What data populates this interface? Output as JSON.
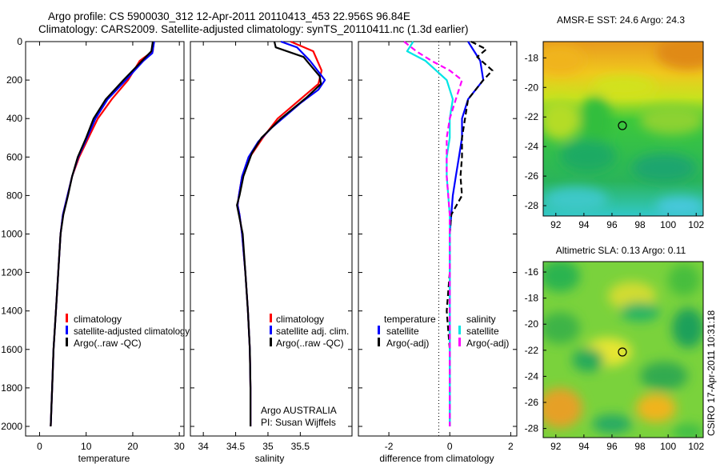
{
  "figure": {
    "title_line1": "Argo profile: CS 5900030_312 12-Apr-2011 20110413_453 22.956S 96.84E",
    "title_line2": "Climatology: CARS2009. Satellite-adjusted climatology: synTS_20110411.nc (1.3d earlier)",
    "side_label": "CSIRO 17-Apr-2011 10:31:18",
    "colors": {
      "climatology": "#ff0000",
      "satellite": "#0000ff",
      "argo": "#000000",
      "sat_salinity": "#00e5e5",
      "argo_salinity": "#ff00ff"
    }
  },
  "temperature_panel": {
    "xlabel": "temperature",
    "legend": [
      "climatology",
      "satellite-adjusted climatology",
      "Argo(..raw -QC)"
    ]
  },
  "salinity_panel": {
    "xlabel": "salinity",
    "legend": [
      "climatology",
      "satellite adj. clim.",
      "Argo(..raw -QC)"
    ],
    "note_line1": "Argo AUSTRALIA",
    "note_line2": "PI: Susan Wijffels"
  },
  "difference_panel": {
    "xlabel": "difference from climatology",
    "legend_temp_header": "temperature",
    "legend_sal_header": "salinity",
    "legend_temp": [
      "satellite",
      "Argo(-adj)"
    ],
    "legend_sal": [
      "satellite",
      "Argo(-adj)"
    ]
  },
  "sst_map": {
    "title": "AMSR-E SST: 24.6 Argo: 24.3",
    "x_ticks": [
      "92",
      "94",
      "96",
      "98",
      "100",
      "102"
    ],
    "y_ticks": [
      "-18",
      "-20",
      "-22",
      "-24",
      "-26",
      "-28"
    ]
  },
  "sla_map": {
    "title": "Altimetric SLA: 0.13 Argo: 0.11",
    "x_ticks": [
      "92",
      "94",
      "96",
      "98",
      "100",
      "102"
    ],
    "y_ticks": [
      "-16",
      "-18",
      "-20",
      "-22",
      "-24",
      "-26",
      "-28"
    ]
  },
  "chart_data": [
    {
      "type": "line",
      "panel": "temperature",
      "xlabel": "temperature",
      "ylabel": "",
      "xlim": [
        -3,
        31
      ],
      "ylim": [
        2050,
        0
      ],
      "x_ticks": [
        0,
        10,
        20,
        30
      ],
      "y_ticks": [
        0,
        200,
        400,
        600,
        800,
        1000,
        1200,
        1400,
        1600,
        1800,
        2000
      ],
      "series": [
        {
          "name": "climatology",
          "color": "#ff0000",
          "points": [
            [
              24.5,
              0
            ],
            [
              24.3,
              50
            ],
            [
              21.5,
              100
            ],
            [
              19,
              200
            ],
            [
              15.5,
              300
            ],
            [
              12.5,
              400
            ],
            [
              10.5,
              500
            ],
            [
              8.5,
              600
            ],
            [
              7,
              700
            ],
            [
              6,
              800
            ],
            [
              5,
              900
            ],
            [
              4.5,
              1000
            ],
            [
              4,
              1200
            ],
            [
              3.5,
              1400
            ],
            [
              3,
              1600
            ],
            [
              2.7,
              1800
            ],
            [
              2.4,
              2000
            ]
          ]
        },
        {
          "name": "satellite-adjusted climatology",
          "color": "#0000ff",
          "points": [
            [
              24.6,
              0
            ],
            [
              24.2,
              60
            ],
            [
              22.3,
              100
            ],
            [
              18.5,
              200
            ],
            [
              14.6,
              300
            ],
            [
              12,
              400
            ],
            [
              10.2,
              500
            ],
            [
              8.3,
              600
            ],
            [
              7,
              700
            ],
            [
              6,
              800
            ],
            [
              5,
              900
            ],
            [
              4.5,
              1000
            ],
            [
              4,
              1200
            ],
            [
              3.5,
              1400
            ],
            [
              3,
              1600
            ],
            [
              2.7,
              1800
            ],
            [
              2.4,
              2000
            ]
          ]
        },
        {
          "name": "Argo(..raw -QC)",
          "color": "#000000",
          "points": [
            [
              24.3,
              0
            ],
            [
              24,
              50
            ],
            [
              22,
              100
            ],
            [
              18,
              200
            ],
            [
              14.2,
              300
            ],
            [
              11.6,
              400
            ],
            [
              10,
              500
            ],
            [
              8.2,
              600
            ],
            [
              7,
              700
            ],
            [
              6.1,
              800
            ],
            [
              5.1,
              900
            ],
            [
              4.5,
              1000
            ],
            [
              4,
              1200
            ],
            [
              3.5,
              1400
            ],
            [
              3,
              1600
            ],
            [
              2.7,
              1800
            ],
            [
              2.4,
              2000
            ]
          ]
        }
      ]
    },
    {
      "type": "line",
      "panel": "salinity",
      "xlabel": "salinity",
      "ylabel": "",
      "xlim": [
        33.8,
        36.3
      ],
      "ylim": [
        2050,
        0
      ],
      "x_ticks": [
        34,
        34.5,
        35,
        35.5
      ],
      "series": [
        {
          "name": "climatology",
          "color": "#ff0000",
          "points": [
            [
              35.35,
              0
            ],
            [
              35.7,
              50
            ],
            [
              35.83,
              150
            ],
            [
              35.78,
              220
            ],
            [
              35.5,
              300
            ],
            [
              35.15,
              400
            ],
            [
              34.92,
              500
            ],
            [
              34.72,
              600
            ],
            [
              34.6,
              700
            ],
            [
              34.55,
              800
            ],
            [
              34.53,
              850
            ],
            [
              34.56,
              900
            ],
            [
              34.6,
              1000
            ],
            [
              34.65,
              1200
            ],
            [
              34.69,
              1400
            ],
            [
              34.72,
              1600
            ],
            [
              34.73,
              1800
            ],
            [
              34.73,
              2000
            ]
          ]
        },
        {
          "name": "satellite adj. clim.",
          "color": "#0000ff",
          "points": [
            [
              35.2,
              0
            ],
            [
              35.45,
              30
            ],
            [
              35.65,
              100
            ],
            [
              35.88,
              200
            ],
            [
              35.78,
              250
            ],
            [
              35.5,
              320
            ],
            [
              35.05,
              450
            ],
            [
              34.85,
              520
            ],
            [
              34.7,
              600
            ],
            [
              34.6,
              700
            ],
            [
              34.55,
              800
            ],
            [
              34.53,
              850
            ],
            [
              34.56,
              900
            ],
            [
              34.6,
              1000
            ],
            [
              34.65,
              1200
            ],
            [
              34.69,
              1400
            ],
            [
              34.72,
              1600
            ],
            [
              34.73,
              1800
            ],
            [
              34.73,
              2000
            ]
          ]
        },
        {
          "name": "Argo(..raw -QC)",
          "color": "#000000",
          "points": [
            [
              35.1,
              0
            ],
            [
              35.12,
              30
            ],
            [
              35.55,
              80
            ],
            [
              35.8,
              180
            ],
            [
              35.82,
              220
            ],
            [
              35.6,
              290
            ],
            [
              35.2,
              400
            ],
            [
              34.9,
              500
            ],
            [
              34.75,
              580
            ],
            [
              34.62,
              700
            ],
            [
              34.56,
              800
            ],
            [
              34.52,
              850
            ],
            [
              34.55,
              900
            ],
            [
              34.61,
              1000
            ],
            [
              34.65,
              1200
            ],
            [
              34.69,
              1400
            ],
            [
              34.72,
              1600
            ],
            [
              34.73,
              1800
            ],
            [
              34.73,
              2000
            ]
          ]
        }
      ]
    },
    {
      "type": "line",
      "panel": "difference",
      "xlabel": "difference from climatology",
      "ylabel": "",
      "xlim": [
        -3,
        2.2
      ],
      "ylim": [
        2050,
        0
      ],
      "x_ticks": [
        -2,
        0,
        2
      ],
      "series": [
        {
          "name": "temperature satellite",
          "color": "#0000ff",
          "points": [
            [
              0.6,
              0
            ],
            [
              0.8,
              50
            ],
            [
              1,
              100
            ],
            [
              1.1,
              200
            ],
            [
              0.6,
              300
            ],
            [
              0.4,
              400
            ],
            [
              0.4,
              500
            ],
            [
              0.3,
              600
            ],
            [
              0.2,
              700
            ],
            [
              0.1,
              800
            ],
            [
              0.05,
              900
            ],
            [
              0,
              1000
            ],
            [
              0,
              1200
            ],
            [
              0,
              1400
            ],
            [
              0,
              1600
            ],
            [
              0,
              1800
            ],
            [
              0,
              2000
            ]
          ]
        },
        {
          "name": "temperature Argo(-adj)",
          "color": "#000000",
          "points": [
            [
              0.7,
              0
            ],
            [
              1.2,
              40
            ],
            [
              0.9,
              80
            ],
            [
              1.4,
              150
            ],
            [
              1.1,
              200
            ],
            [
              0.6,
              300
            ],
            [
              0.5,
              400
            ],
            [
              0.4,
              500
            ],
            [
              0.4,
              600
            ],
            [
              0.35,
              700
            ],
            [
              0.4,
              800
            ],
            [
              0.05,
              900
            ],
            [
              0,
              1000
            ],
            [
              0,
              1200
            ],
            [
              -0.1,
              1400
            ],
            [
              0,
              1600
            ],
            [
              0,
              1800
            ],
            [
              0,
              2000
            ]
          ]
        },
        {
          "name": "salinity satellite",
          "color": "#00e5e5",
          "points": [
            [
              -1.2,
              0
            ],
            [
              -1.4,
              50
            ],
            [
              -0.8,
              100
            ],
            [
              -0.1,
              200
            ],
            [
              0.1,
              300
            ],
            [
              0,
              400
            ],
            [
              0,
              500
            ],
            [
              -0.1,
              600
            ],
            [
              -0.1,
              700
            ],
            [
              -0.05,
              800
            ],
            [
              0,
              900
            ],
            [
              0,
              1000
            ],
            [
              0,
              1200
            ],
            [
              0,
              1400
            ],
            [
              0,
              1600
            ],
            [
              0,
              1800
            ],
            [
              0,
              2000
            ]
          ]
        },
        {
          "name": "salinity Argo(-adj)",
          "color": "#ff00ff",
          "points": [
            [
              -1.5,
              0
            ],
            [
              -1.1,
              50
            ],
            [
              -0.6,
              100
            ],
            [
              0,
              150
            ],
            [
              0.4,
              200
            ],
            [
              0.2,
              300
            ],
            [
              0,
              400
            ],
            [
              -0.1,
              500
            ],
            [
              -0.1,
              600
            ],
            [
              -0.1,
              700
            ],
            [
              -0.05,
              800
            ],
            [
              0,
              900
            ],
            [
              0,
              1000
            ],
            [
              0,
              1200
            ],
            [
              0,
              1400
            ],
            [
              0,
              1600
            ],
            [
              0,
              1800
            ],
            [
              0,
              2000
            ]
          ]
        }
      ]
    },
    {
      "type": "heatmap",
      "panel": "sst_map",
      "title": "AMSR-E SST: 24.6 Argo: 24.3",
      "xlim": [
        91.1,
        102.5
      ],
      "ylim": [
        -28.7,
        -16.9
      ],
      "marker": {
        "lon": 96.84,
        "lat": -22.956
      }
    },
    {
      "type": "heatmap",
      "panel": "sla_map",
      "title": "Altimetric SLA: 0.13 Argo: 0.11",
      "xlim": [
        91.1,
        102.5
      ],
      "ylim": [
        -28.7,
        -15.2
      ],
      "marker": {
        "lon": 96.84,
        "lat": -22.956
      }
    }
  ]
}
